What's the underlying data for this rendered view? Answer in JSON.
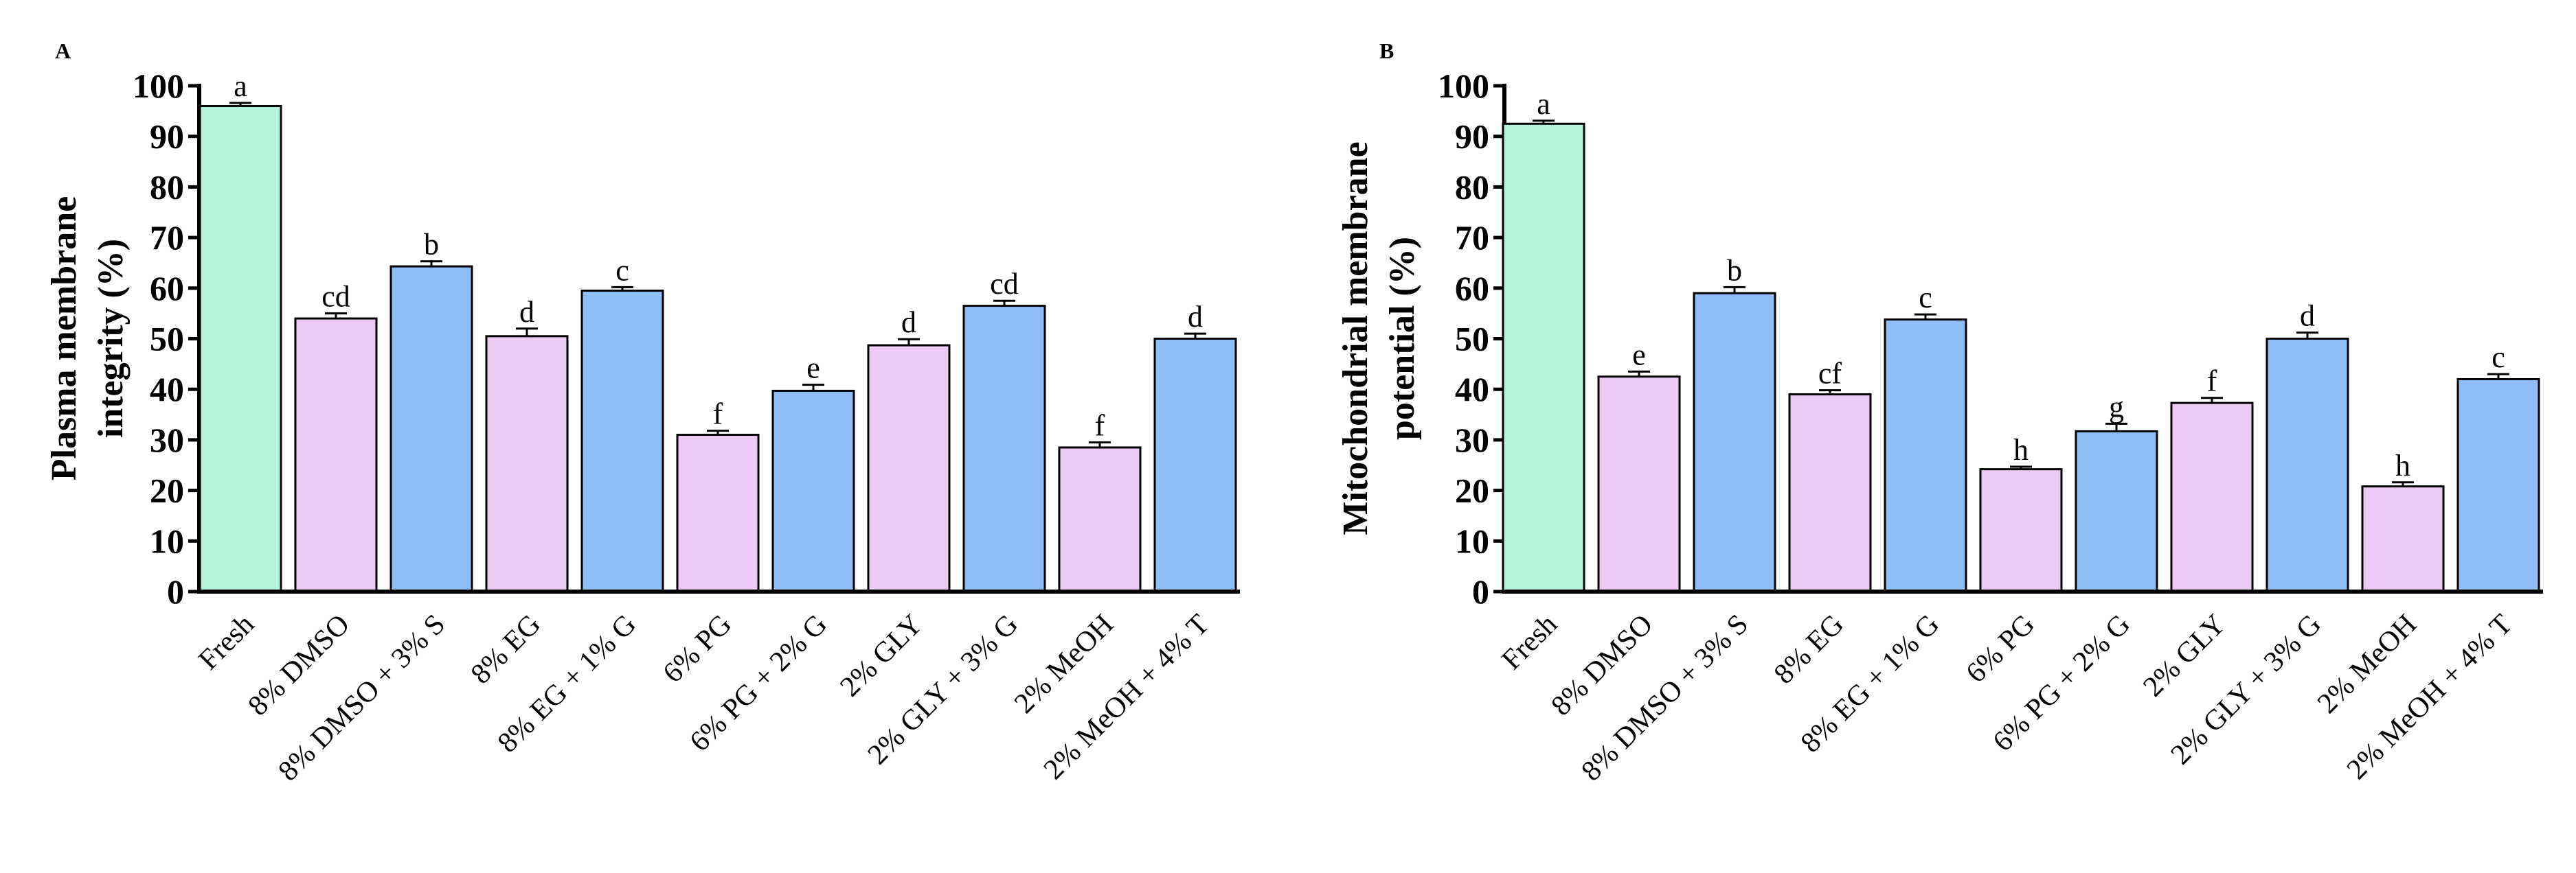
{
  "colors": {
    "fresh": "#b4f2da",
    "pink": "#ebcbf4",
    "blue": "#8fbdf5",
    "axis": "#000000"
  },
  "chart_data": [
    {
      "type": "bar",
      "panel": "A",
      "title": "",
      "xlabel": "",
      "ylabel": "Plasma membrane integrity (%)",
      "ylabel_lines": [
        "Plasma membrane",
        "integrity (%)"
      ],
      "ylim": [
        0,
        100
      ],
      "yticks": [
        0,
        10,
        20,
        30,
        40,
        50,
        60,
        70,
        80,
        90,
        100
      ],
      "categories": [
        "Fresh",
        "8% DMSO",
        "8% DMSO + 3% S",
        "8% EG",
        "8% EG + 1% G",
        "6% PG",
        "6% PG + 2% G",
        "2% GLY",
        "2% GLY + 3% G",
        "2% MeOH",
        "2% MeOH + 4% T"
      ],
      "values": [
        96,
        54,
        64.3,
        50.5,
        59.5,
        31,
        39.7,
        48.7,
        56.5,
        28.5,
        50
      ],
      "errors": [
        0.6,
        1.0,
        1.0,
        1.5,
        0.7,
        0.8,
        1.2,
        1.2,
        1.0,
        1.0,
        1.0
      ],
      "letters": [
        "a",
        "cd",
        "b",
        "d",
        "c",
        "f",
        "e",
        "d",
        "cd",
        "f",
        "d"
      ],
      "bar_colors": [
        "fresh",
        "pink",
        "blue",
        "pink",
        "blue",
        "pink",
        "blue",
        "pink",
        "blue",
        "pink",
        "blue"
      ]
    },
    {
      "type": "bar",
      "panel": "B",
      "title": "",
      "xlabel": "",
      "ylabel": "Mitochondrial membrane potential (%)",
      "ylabel_lines": [
        "Mitochondrial membrane",
        "potential (%)"
      ],
      "ylim": [
        0,
        100
      ],
      "yticks": [
        0,
        10,
        20,
        30,
        40,
        50,
        60,
        70,
        80,
        90,
        100
      ],
      "categories": [
        "Fresh",
        "8% DMSO",
        "8% DMSO + 3% S",
        "8% EG",
        "8% EG + 1% G",
        "6% PG",
        "6% PG + 2% G",
        "2% GLY",
        "2% GLY + 3% G",
        "2% MeOH",
        "2% MeOH + 4% T"
      ],
      "values": [
        92.5,
        42.5,
        59,
        39,
        53.8,
        24.2,
        31.7,
        37.3,
        50,
        20.8,
        42
      ],
      "errors": [
        0.6,
        1.0,
        1.2,
        0.8,
        1.0,
        0.5,
        1.5,
        1.0,
        1.2,
        0.8,
        1.0
      ],
      "letters": [
        "a",
        "e",
        "b",
        "cf",
        "c",
        "h",
        "g",
        "f",
        "d",
        "h",
        "c"
      ],
      "bar_colors": [
        "fresh",
        "pink",
        "blue",
        "pink",
        "blue",
        "pink",
        "blue",
        "pink",
        "blue",
        "pink",
        "blue"
      ]
    }
  ]
}
